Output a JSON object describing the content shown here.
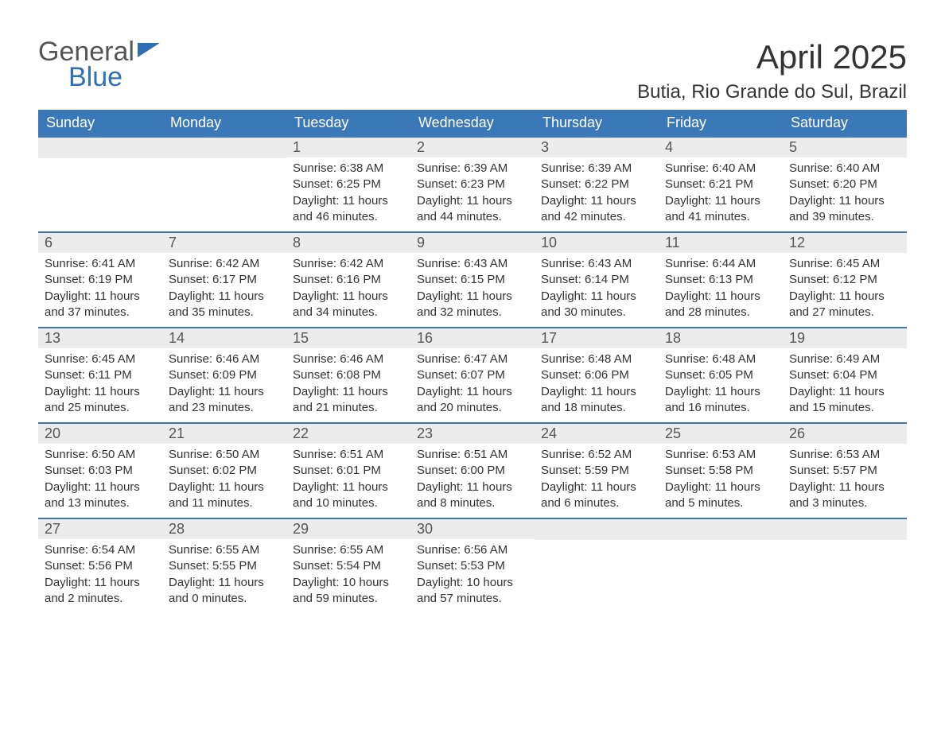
{
  "brand": {
    "word1": "General",
    "word2": "Blue",
    "color_primary": "#2f6fb3",
    "color_text": "#555555"
  },
  "header": {
    "month_title": "April 2025",
    "location": "Butia, Rio Grande do Sul, Brazil",
    "title_fontsize": 42,
    "location_fontsize": 24
  },
  "calendar": {
    "type": "calendar-table",
    "header_bg": "#3a78b8",
    "header_text_color": "#ffffff",
    "daynum_bg": "#ececec",
    "row_border_color": "#3a78b8",
    "body_text_color": "#333333",
    "weekdays": [
      "Sunday",
      "Monday",
      "Tuesday",
      "Wednesday",
      "Thursday",
      "Friday",
      "Saturday"
    ],
    "weeks": [
      [
        {
          "day": "",
          "sunrise": "",
          "sunset": "",
          "daylight": ""
        },
        {
          "day": "",
          "sunrise": "",
          "sunset": "",
          "daylight": ""
        },
        {
          "day": "1",
          "sunrise": "Sunrise: 6:38 AM",
          "sunset": "Sunset: 6:25 PM",
          "daylight": "Daylight: 11 hours and 46 minutes."
        },
        {
          "day": "2",
          "sunrise": "Sunrise: 6:39 AM",
          "sunset": "Sunset: 6:23 PM",
          "daylight": "Daylight: 11 hours and 44 minutes."
        },
        {
          "day": "3",
          "sunrise": "Sunrise: 6:39 AM",
          "sunset": "Sunset: 6:22 PM",
          "daylight": "Daylight: 11 hours and 42 minutes."
        },
        {
          "day": "4",
          "sunrise": "Sunrise: 6:40 AM",
          "sunset": "Sunset: 6:21 PM",
          "daylight": "Daylight: 11 hours and 41 minutes."
        },
        {
          "day": "5",
          "sunrise": "Sunrise: 6:40 AM",
          "sunset": "Sunset: 6:20 PM",
          "daylight": "Daylight: 11 hours and 39 minutes."
        }
      ],
      [
        {
          "day": "6",
          "sunrise": "Sunrise: 6:41 AM",
          "sunset": "Sunset: 6:19 PM",
          "daylight": "Daylight: 11 hours and 37 minutes."
        },
        {
          "day": "7",
          "sunrise": "Sunrise: 6:42 AM",
          "sunset": "Sunset: 6:17 PM",
          "daylight": "Daylight: 11 hours and 35 minutes."
        },
        {
          "day": "8",
          "sunrise": "Sunrise: 6:42 AM",
          "sunset": "Sunset: 6:16 PM",
          "daylight": "Daylight: 11 hours and 34 minutes."
        },
        {
          "day": "9",
          "sunrise": "Sunrise: 6:43 AM",
          "sunset": "Sunset: 6:15 PM",
          "daylight": "Daylight: 11 hours and 32 minutes."
        },
        {
          "day": "10",
          "sunrise": "Sunrise: 6:43 AM",
          "sunset": "Sunset: 6:14 PM",
          "daylight": "Daylight: 11 hours and 30 minutes."
        },
        {
          "day": "11",
          "sunrise": "Sunrise: 6:44 AM",
          "sunset": "Sunset: 6:13 PM",
          "daylight": "Daylight: 11 hours and 28 minutes."
        },
        {
          "day": "12",
          "sunrise": "Sunrise: 6:45 AM",
          "sunset": "Sunset: 6:12 PM",
          "daylight": "Daylight: 11 hours and 27 minutes."
        }
      ],
      [
        {
          "day": "13",
          "sunrise": "Sunrise: 6:45 AM",
          "sunset": "Sunset: 6:11 PM",
          "daylight": "Daylight: 11 hours and 25 minutes."
        },
        {
          "day": "14",
          "sunrise": "Sunrise: 6:46 AM",
          "sunset": "Sunset: 6:09 PM",
          "daylight": "Daylight: 11 hours and 23 minutes."
        },
        {
          "day": "15",
          "sunrise": "Sunrise: 6:46 AM",
          "sunset": "Sunset: 6:08 PM",
          "daylight": "Daylight: 11 hours and 21 minutes."
        },
        {
          "day": "16",
          "sunrise": "Sunrise: 6:47 AM",
          "sunset": "Sunset: 6:07 PM",
          "daylight": "Daylight: 11 hours and 20 minutes."
        },
        {
          "day": "17",
          "sunrise": "Sunrise: 6:48 AM",
          "sunset": "Sunset: 6:06 PM",
          "daylight": "Daylight: 11 hours and 18 minutes."
        },
        {
          "day": "18",
          "sunrise": "Sunrise: 6:48 AM",
          "sunset": "Sunset: 6:05 PM",
          "daylight": "Daylight: 11 hours and 16 minutes."
        },
        {
          "day": "19",
          "sunrise": "Sunrise: 6:49 AM",
          "sunset": "Sunset: 6:04 PM",
          "daylight": "Daylight: 11 hours and 15 minutes."
        }
      ],
      [
        {
          "day": "20",
          "sunrise": "Sunrise: 6:50 AM",
          "sunset": "Sunset: 6:03 PM",
          "daylight": "Daylight: 11 hours and 13 minutes."
        },
        {
          "day": "21",
          "sunrise": "Sunrise: 6:50 AM",
          "sunset": "Sunset: 6:02 PM",
          "daylight": "Daylight: 11 hours and 11 minutes."
        },
        {
          "day": "22",
          "sunrise": "Sunrise: 6:51 AM",
          "sunset": "Sunset: 6:01 PM",
          "daylight": "Daylight: 11 hours and 10 minutes."
        },
        {
          "day": "23",
          "sunrise": "Sunrise: 6:51 AM",
          "sunset": "Sunset: 6:00 PM",
          "daylight": "Daylight: 11 hours and 8 minutes."
        },
        {
          "day": "24",
          "sunrise": "Sunrise: 6:52 AM",
          "sunset": "Sunset: 5:59 PM",
          "daylight": "Daylight: 11 hours and 6 minutes."
        },
        {
          "day": "25",
          "sunrise": "Sunrise: 6:53 AM",
          "sunset": "Sunset: 5:58 PM",
          "daylight": "Daylight: 11 hours and 5 minutes."
        },
        {
          "day": "26",
          "sunrise": "Sunrise: 6:53 AM",
          "sunset": "Sunset: 5:57 PM",
          "daylight": "Daylight: 11 hours and 3 minutes."
        }
      ],
      [
        {
          "day": "27",
          "sunrise": "Sunrise: 6:54 AM",
          "sunset": "Sunset: 5:56 PM",
          "daylight": "Daylight: 11 hours and 2 minutes."
        },
        {
          "day": "28",
          "sunrise": "Sunrise: 6:55 AM",
          "sunset": "Sunset: 5:55 PM",
          "daylight": "Daylight: 11 hours and 0 minutes."
        },
        {
          "day": "29",
          "sunrise": "Sunrise: 6:55 AM",
          "sunset": "Sunset: 5:54 PM",
          "daylight": "Daylight: 10 hours and 59 minutes."
        },
        {
          "day": "30",
          "sunrise": "Sunrise: 6:56 AM",
          "sunset": "Sunset: 5:53 PM",
          "daylight": "Daylight: 10 hours and 57 minutes."
        },
        {
          "day": "",
          "sunrise": "",
          "sunset": "",
          "daylight": ""
        },
        {
          "day": "",
          "sunrise": "",
          "sunset": "",
          "daylight": ""
        },
        {
          "day": "",
          "sunrise": "",
          "sunset": "",
          "daylight": ""
        }
      ]
    ]
  }
}
